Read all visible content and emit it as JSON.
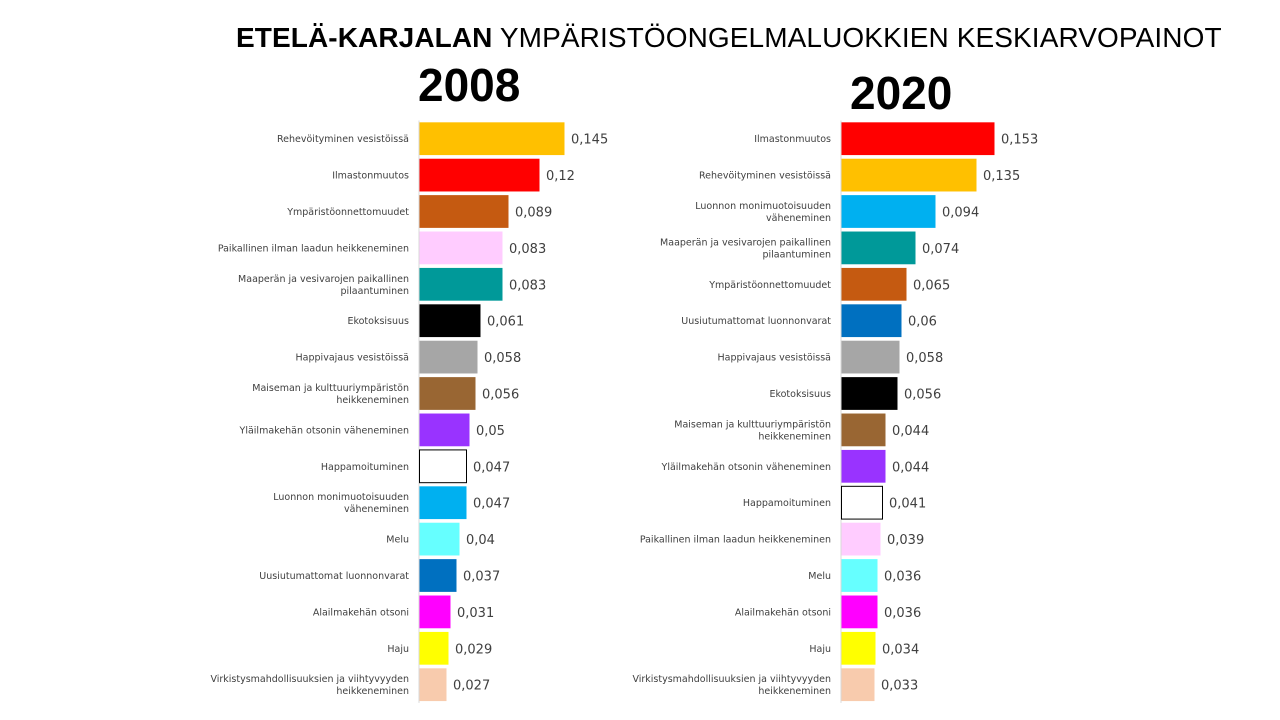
{
  "title": {
    "bold": "ETELÄ-KARJALAN",
    "rest": " YMPÄRISTÖONGELMALUOKKIEN KESKIARVOPAINOT"
  },
  "chart_data": [
    {
      "type": "bar",
      "orientation": "horizontal",
      "title": "2008",
      "categories": [
        "Rehevöityminen vesistöissä",
        "Ilmastonmuutos",
        "Ympäristöonnettomuudet",
        "Paikallinen ilman laadun heikkeneminen",
        "Maaperän ja vesivarojen paikallinen pilaantuminen",
        "Ekotoksisuus",
        "Happivajaus vesistöissä",
        "Maiseman ja kulttuuriympäristön heikkeneminen",
        "Yläilmakehän otsonin väheneminen",
        "Happamoituminen",
        "Luonnon monimuotoisuuden väheneminen",
        "Melu",
        "Uusiutumattomat luonnonvarat",
        "Alailmakehän otsoni",
        "Haju",
        "Virkistysmahdollisuuksien ja viihtyvyyden heikkeneminen"
      ],
      "label_lines": [
        [
          "Rehevöityminen vesistöissä"
        ],
        [
          "Ilmastonmuutos"
        ],
        [
          "Ympäristöonnettomuudet"
        ],
        [
          "Paikallinen ilman laadun heikkeneminen"
        ],
        [
          "Maaperän ja vesivarojen paikallinen",
          "pilaantuminen"
        ],
        [
          "Ekotoksisuus"
        ],
        [
          "Happivajaus vesistöissä"
        ],
        [
          "Maiseman ja kulttuuriympäristön",
          "heikkeneminen"
        ],
        [
          "Yläilmakehän otsonin väheneminen"
        ],
        [
          "Happamoituminen"
        ],
        [
          "Luonnon monimuotoisuuden",
          "väheneminen"
        ],
        [
          "Melu"
        ],
        [
          "Uusiutumattomat luonnonvarat"
        ],
        [
          "Alailmakehän otsoni"
        ],
        [
          "Haju"
        ],
        [
          "Virkistysmahdollisuuksien ja viihtyvyyden",
          "heikkeneminen"
        ]
      ],
      "values": [
        0.145,
        0.12,
        0.089,
        0.083,
        0.083,
        0.061,
        0.058,
        0.056,
        0.05,
        0.047,
        0.047,
        0.04,
        0.037,
        0.031,
        0.029,
        0.027
      ],
      "value_labels": [
        "0,145",
        "0,12",
        "0,089",
        "0,083",
        "0,083",
        "0,061",
        "0,058",
        "0,056",
        "0,05",
        "0,047",
        "0,047",
        "0,04",
        "0,037",
        "0,031",
        "0,029",
        "0,027"
      ],
      "colors": [
        "#FFC000",
        "#FF0000",
        "#C55A11",
        "#FFCCFF",
        "#009999",
        "#000000",
        "#A6A6A6",
        "#996633",
        "#9933FF",
        "#FFFFFF",
        "#00B0F0",
        "#66FFFF",
        "#0070C0",
        "#FF00FF",
        "#FFFF00",
        "#F8CBAD"
      ],
      "xlim": [
        0,
        0.16
      ]
    },
    {
      "type": "bar",
      "orientation": "horizontal",
      "title": "2020",
      "categories": [
        "Ilmastonmuutos",
        "Rehevöityminen vesistöissä",
        "Luonnon monimuotoisuuden väheneminen",
        "Maaperän ja vesivarojen paikallinen pilaantuminen",
        "Ympäristöonnettomuudet",
        "Uusiutumattomat luonnonvarat",
        "Happivajaus vesistöissä",
        "Ekotoksisuus",
        "Maiseman ja kulttuuriympäristön heikkeneminen",
        "Yläilmakehän otsonin väheneminen",
        "Happamoituminen",
        "Paikallinen ilman laadun heikkeneminen",
        "Melu",
        "Alailmakehän otsoni",
        "Haju",
        "Virkistysmahdollisuuksien ja viihtyvyyden heikkeneminen"
      ],
      "label_lines": [
        [
          "Ilmastonmuutos"
        ],
        [
          "Rehevöityminen vesistöissä"
        ],
        [
          "Luonnon monimuotoisuuden",
          "väheneminen"
        ],
        [
          "Maaperän ja vesivarojen paikallinen",
          "pilaantuminen"
        ],
        [
          "Ympäristöonnettomuudet"
        ],
        [
          "Uusiutumattomat luonnonvarat"
        ],
        [
          "Happivajaus vesistöissä"
        ],
        [
          "Ekotoksisuus"
        ],
        [
          "Maiseman ja kulttuuriympäristön",
          "heikkeneminen"
        ],
        [
          "Yläilmakehän otsonin väheneminen"
        ],
        [
          "Happamoituminen"
        ],
        [
          "Paikallinen ilman laadun heikkeneminen"
        ],
        [
          "Melu"
        ],
        [
          "Alailmakehän otsoni"
        ],
        [
          "Haju"
        ],
        [
          "Virkistysmahdollisuuksien ja viihtyvyyden",
          "heikkeneminen"
        ]
      ],
      "values": [
        0.153,
        0.135,
        0.094,
        0.074,
        0.065,
        0.06,
        0.058,
        0.056,
        0.044,
        0.044,
        0.041,
        0.039,
        0.036,
        0.036,
        0.034,
        0.033
      ],
      "value_labels": [
        "0,153",
        "0,135",
        "0,094",
        "0,074",
        "0,065",
        "0,06",
        "0,058",
        "0,056",
        "0,044",
        "0,044",
        "0,041",
        "0,039",
        "0,036",
        "0,036",
        "0,034",
        "0,033"
      ],
      "colors": [
        "#FF0000",
        "#FFC000",
        "#00B0F0",
        "#009999",
        "#C55A11",
        "#0070C0",
        "#A6A6A6",
        "#000000",
        "#996633",
        "#9933FF",
        "#FFFFFF",
        "#FFCCFF",
        "#66FFFF",
        "#FF00FF",
        "#FFFF00",
        "#F8CBAD"
      ],
      "xlim": [
        0,
        0.16
      ]
    }
  ]
}
